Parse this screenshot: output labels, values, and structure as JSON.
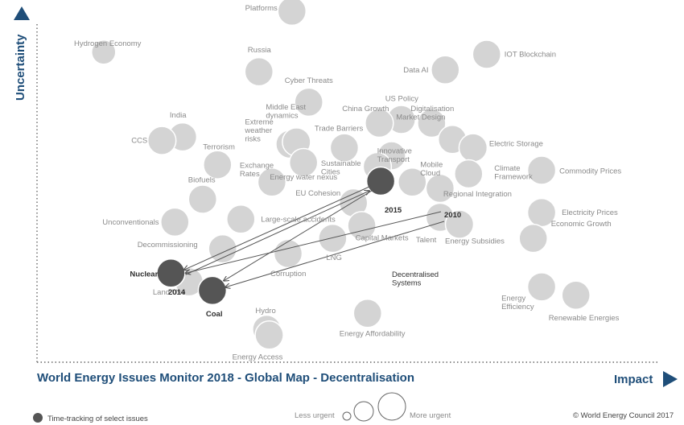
{
  "chart_data": {
    "type": "scatter",
    "title": "World Energy Issues Monitor 2018 - Global Map - Decentralisation",
    "xlabel": "Impact",
    "ylabel": "Uncertainty",
    "copyright": "© World Energy Council 2017",
    "legend": {
      "timetrack_label": "Time-tracking of select issues",
      "less_urgent": "Less urgent",
      "more_urgent": "More urgent"
    },
    "colors": {
      "bubble": "#d4d4d4",
      "tracked": "#555555",
      "axis": "#1f4e79"
    },
    "grid": false,
    "points": [
      {
        "label": "Platforms",
        "x": 0.394,
        "y": 0.969
      },
      {
        "label": "Hydrogen Economy",
        "x": 0.103,
        "y": 0.856
      },
      {
        "label": "Russia",
        "x": 0.343,
        "y": 0.802
      },
      {
        "label": "Cyber Threats",
        "x": 0.42,
        "y": 0.718
      },
      {
        "label": "Data AI",
        "x": 0.631,
        "y": 0.807
      },
      {
        "label": "IOT Blockchain",
        "x": 0.695,
        "y": 0.85
      },
      {
        "label": "US Policy",
        "x": 0.563,
        "y": 0.67
      },
      {
        "label": "Digitalisation",
        "x": 0.61,
        "y": 0.66
      },
      {
        "label": "China Growth",
        "x": 0.529,
        "y": 0.66
      },
      {
        "label": "Market Design",
        "x": 0.642,
        "y": 0.615
      },
      {
        "label": "India",
        "x": 0.225,
        "y": 0.622
      },
      {
        "label": "CCS",
        "x": 0.193,
        "y": 0.612
      },
      {
        "label": "Terrorism",
        "x": 0.279,
        "y": 0.545
      },
      {
        "label": "Middle East dynamics",
        "x": 0.391,
        "y": 0.602
      },
      {
        "label": "Extreme weather risks",
        "x": 0.401,
        "y": 0.608
      },
      {
        "label": "Trade Barriers",
        "x": 0.475,
        "y": 0.592
      },
      {
        "label": "Innovative Transport",
        "x": 0.548,
        "y": 0.57
      },
      {
        "label": "Electric Storage",
        "x": 0.674,
        "y": 0.592
      },
      {
        "label": "Exchange Rates",
        "x": 0.363,
        "y": 0.497
      },
      {
        "label": "Energy water nexus",
        "x": 0.412,
        "y": 0.551
      },
      {
        "label": "Sustainable Cities",
        "x": 0.526,
        "y": 0.54
      },
      {
        "label": "Mobile Cloud",
        "x": 0.58,
        "y": 0.497
      },
      {
        "label": "Climate Framework",
        "x": 0.667,
        "y": 0.52
      },
      {
        "label": "Commodity Prices",
        "x": 0.78,
        "y": 0.53
      },
      {
        "label": "Biofuels",
        "x": 0.256,
        "y": 0.45
      },
      {
        "label": "EU Cohesion",
        "x": 0.489,
        "y": 0.44
      },
      {
        "label": "Regional Integration",
        "x": 0.623,
        "y": 0.48
      },
      {
        "label": "Unconventionals",
        "x": 0.213,
        "y": 0.387
      },
      {
        "label": "Large-scale accidents",
        "x": 0.315,
        "y": 0.395
      },
      {
        "label": "Electricity Prices",
        "x": 0.78,
        "y": 0.413
      },
      {
        "label": "Decommissioning",
        "x": 0.287,
        "y": 0.313
      },
      {
        "label": "Talent",
        "x": 0.623,
        "y": 0.4
      },
      {
        "label": "Capital Markets",
        "x": 0.502,
        "y": 0.377
      },
      {
        "label": "Energy Subsidies",
        "x": 0.653,
        "y": 0.381
      },
      {
        "label": "Economic Growth",
        "x": 0.767,
        "y": 0.342
      },
      {
        "label": "Corruption",
        "x": 0.388,
        "y": 0.3
      },
      {
        "label": "LNG",
        "x": 0.457,
        "y": 0.342
      },
      {
        "label": "Land Use",
        "x": 0.235,
        "y": 0.222
      },
      {
        "label": "Energy Efficiency",
        "x": 0.78,
        "y": 0.208
      },
      {
        "label": "Renewable Energies",
        "x": 0.833,
        "y": 0.185
      },
      {
        "label": "Energy Affordability",
        "x": 0.511,
        "y": 0.135
      },
      {
        "label": "Hydro",
        "x": 0.355,
        "y": 0.091
      },
      {
        "label": "Energy Access",
        "x": 0.359,
        "y": 0.075
      }
    ],
    "tracked_points": [
      {
        "label": "Nuclear",
        "x": 0.207,
        "y": 0.246
      },
      {
        "label": "Coal",
        "x": 0.271,
        "y": 0.198
      },
      {
        "label": "Decentralised Systems",
        "x": 0.535,
        "y": 0.5
      }
    ],
    "annotations": [
      {
        "label": "2014"
      },
      {
        "label": "2015"
      },
      {
        "label": "2010"
      }
    ]
  }
}
